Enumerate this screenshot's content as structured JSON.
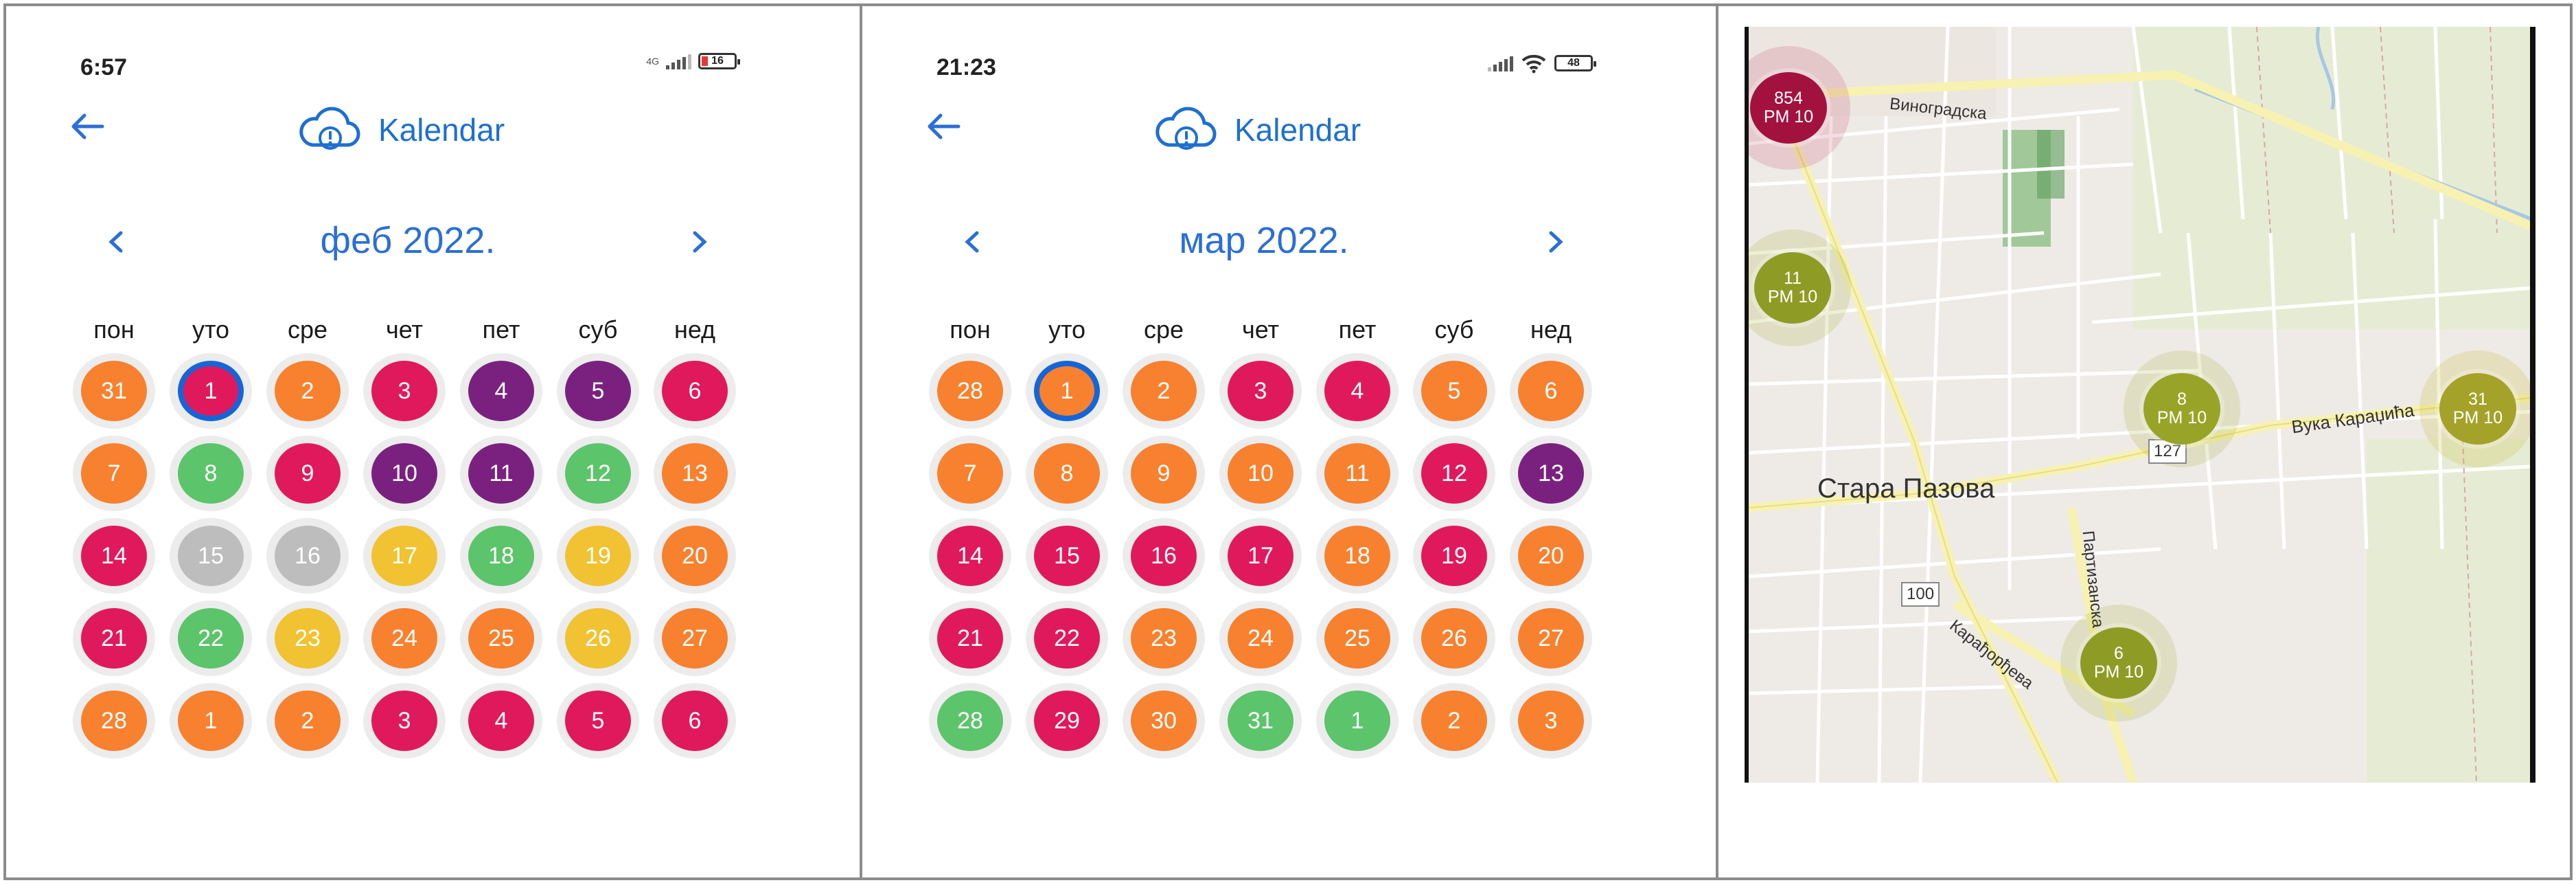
{
  "colors": {
    "orange": "#f7812f",
    "red": "#e0195c",
    "purple": "#7a2180",
    "green": "#5cc46a",
    "gray": "#bdbdbd",
    "yellow": "#f1c232",
    "accent": "#1e6fd0",
    "selected_ring": "#1565d8"
  },
  "weekdays": [
    "пон",
    "уто",
    "сре",
    "чет",
    "пет",
    "суб",
    "нед"
  ],
  "screens": [
    {
      "status_time": "6:57",
      "network": "4G",
      "battery": "16",
      "app_title": "Kalendar",
      "month": "феб 2022.",
      "days": [
        {
          "d": "31",
          "c": "orange"
        },
        {
          "d": "1",
          "c": "red",
          "selected": true
        },
        {
          "d": "2",
          "c": "orange"
        },
        {
          "d": "3",
          "c": "red"
        },
        {
          "d": "4",
          "c": "purple"
        },
        {
          "d": "5",
          "c": "purple"
        },
        {
          "d": "6",
          "c": "red"
        },
        {
          "d": "7",
          "c": "orange"
        },
        {
          "d": "8",
          "c": "green"
        },
        {
          "d": "9",
          "c": "red"
        },
        {
          "d": "10",
          "c": "purple"
        },
        {
          "d": "11",
          "c": "purple"
        },
        {
          "d": "12",
          "c": "green"
        },
        {
          "d": "13",
          "c": "orange"
        },
        {
          "d": "14",
          "c": "red"
        },
        {
          "d": "15",
          "c": "gray"
        },
        {
          "d": "16",
          "c": "gray"
        },
        {
          "d": "17",
          "c": "yellow"
        },
        {
          "d": "18",
          "c": "green"
        },
        {
          "d": "19",
          "c": "yellow"
        },
        {
          "d": "20",
          "c": "orange"
        },
        {
          "d": "21",
          "c": "red"
        },
        {
          "d": "22",
          "c": "green"
        },
        {
          "d": "23",
          "c": "yellow"
        },
        {
          "d": "24",
          "c": "orange"
        },
        {
          "d": "25",
          "c": "orange"
        },
        {
          "d": "26",
          "c": "yellow"
        },
        {
          "d": "27",
          "c": "orange"
        },
        {
          "d": "28",
          "c": "orange"
        },
        {
          "d": "1",
          "c": "orange"
        },
        {
          "d": "2",
          "c": "orange"
        },
        {
          "d": "3",
          "c": "red"
        },
        {
          "d": "4",
          "c": "red"
        },
        {
          "d": "5",
          "c": "red"
        },
        {
          "d": "6",
          "c": "red"
        }
      ]
    },
    {
      "status_time": "21:23",
      "network": "",
      "battery": "48",
      "app_title": "Kalendar",
      "month": "мар 2022.",
      "days": [
        {
          "d": "28",
          "c": "orange"
        },
        {
          "d": "1",
          "c": "orange",
          "selected": true
        },
        {
          "d": "2",
          "c": "orange"
        },
        {
          "d": "3",
          "c": "red"
        },
        {
          "d": "4",
          "c": "red"
        },
        {
          "d": "5",
          "c": "orange"
        },
        {
          "d": "6",
          "c": "orange"
        },
        {
          "d": "7",
          "c": "orange"
        },
        {
          "d": "8",
          "c": "orange"
        },
        {
          "d": "9",
          "c": "orange"
        },
        {
          "d": "10",
          "c": "orange"
        },
        {
          "d": "11",
          "c": "orange"
        },
        {
          "d": "12",
          "c": "red"
        },
        {
          "d": "13",
          "c": "purple"
        },
        {
          "d": "14",
          "c": "red"
        },
        {
          "d": "15",
          "c": "red"
        },
        {
          "d": "16",
          "c": "red"
        },
        {
          "d": "17",
          "c": "red"
        },
        {
          "d": "18",
          "c": "orange"
        },
        {
          "d": "19",
          "c": "red"
        },
        {
          "d": "20",
          "c": "orange"
        },
        {
          "d": "21",
          "c": "red"
        },
        {
          "d": "22",
          "c": "red"
        },
        {
          "d": "23",
          "c": "orange"
        },
        {
          "d": "24",
          "c": "orange"
        },
        {
          "d": "25",
          "c": "orange"
        },
        {
          "d": "26",
          "c": "orange"
        },
        {
          "d": "27",
          "c": "orange"
        },
        {
          "d": "28",
          "c": "green"
        },
        {
          "d": "29",
          "c": "red"
        },
        {
          "d": "30",
          "c": "orange"
        },
        {
          "d": "31",
          "c": "green"
        },
        {
          "d": "1",
          "c": "green"
        },
        {
          "d": "2",
          "c": "orange"
        },
        {
          "d": "3",
          "c": "orange"
        }
      ]
    }
  ],
  "map": {
    "town_label": "Стара Пазова",
    "street_labels": [
      "Виноградска",
      "Вука Караџића",
      "Партизанска",
      "Карађорђева"
    ],
    "road_shields": [
      "127",
      "100"
    ],
    "clusters": [
      {
        "top": "854",
        "bottom": "PM 10",
        "color": "#a3123f"
      },
      {
        "top": "11",
        "bottom": "PM 10",
        "color": "#8e9c26"
      },
      {
        "top": "8",
        "bottom": "PM 10",
        "color": "#97a428"
      },
      {
        "top": "31",
        "bottom": "PM 10",
        "color": "#a5a22a"
      },
      {
        "top": "6",
        "bottom": "PM 10",
        "color": "#8e9c26"
      }
    ]
  }
}
